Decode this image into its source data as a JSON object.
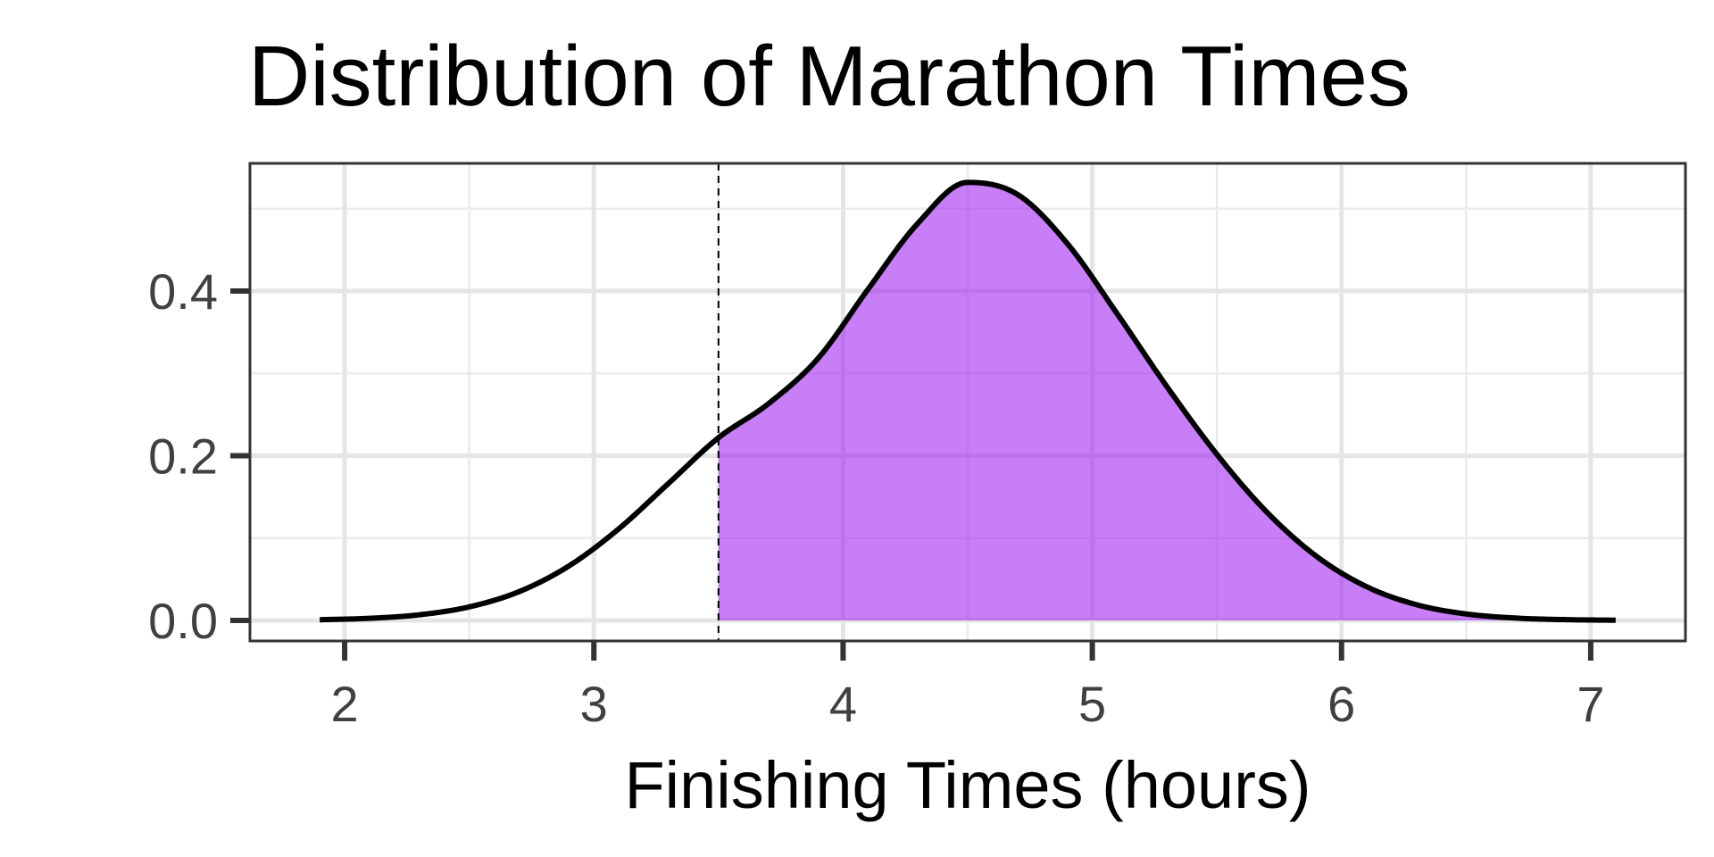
{
  "chart_data": {
    "type": "area",
    "title": "Distribution of Marathon Times",
    "xlabel": "Finishing Times (hours)",
    "ylabel": "",
    "xlim": [
      1.62,
      7.38
    ],
    "ylim": [
      -0.025,
      0.555
    ],
    "x_ticks": [
      2,
      3,
      4,
      5,
      6,
      7
    ],
    "y_ticks": [
      0.0,
      0.2,
      0.4
    ],
    "x_tick_labels": [
      "2",
      "3",
      "4",
      "5",
      "6",
      "7"
    ],
    "y_tick_labels": [
      "0.0",
      "0.2",
      "0.4"
    ],
    "x_minor_ticks": [
      2.5,
      3.5,
      4.5,
      5.5,
      6.5
    ],
    "y_minor_ticks": [
      0.1,
      0.3,
      0.5
    ],
    "grid": true,
    "series": [
      {
        "kind": "density_curve",
        "x": [
          1.9,
          2.1,
          2.3,
          2.5,
          2.7,
          2.9,
          3.1,
          3.3,
          3.5,
          3.7,
          3.9,
          4.1,
          4.3,
          4.5,
          4.7,
          4.9,
          5.1,
          5.3,
          5.5,
          5.7,
          5.9,
          6.1,
          6.3,
          6.5,
          6.7,
          6.9,
          7.1
        ],
        "y": [
          0.0008,
          0.0025,
          0.0068,
          0.0164,
          0.0349,
          0.0661,
          0.1112,
          0.1665,
          0.2218,
          0.263,
          0.3183,
          0.4021,
          0.4822,
          0.5319,
          0.5172,
          0.4575,
          0.3723,
          0.2836,
          0.2016,
          0.1316,
          0.0777,
          0.041,
          0.0191,
          0.0078,
          0.0028,
          0.0009,
          0.0002
        ],
        "color": "#000000"
      },
      {
        "kind": "shaded_area",
        "x_from": 3.5,
        "x_to": 7.1,
        "color": "#a020f0",
        "opacity": 0.58
      },
      {
        "kind": "vertical_line",
        "x": 3.5,
        "style": "dashed",
        "color": "#000000"
      }
    ]
  }
}
